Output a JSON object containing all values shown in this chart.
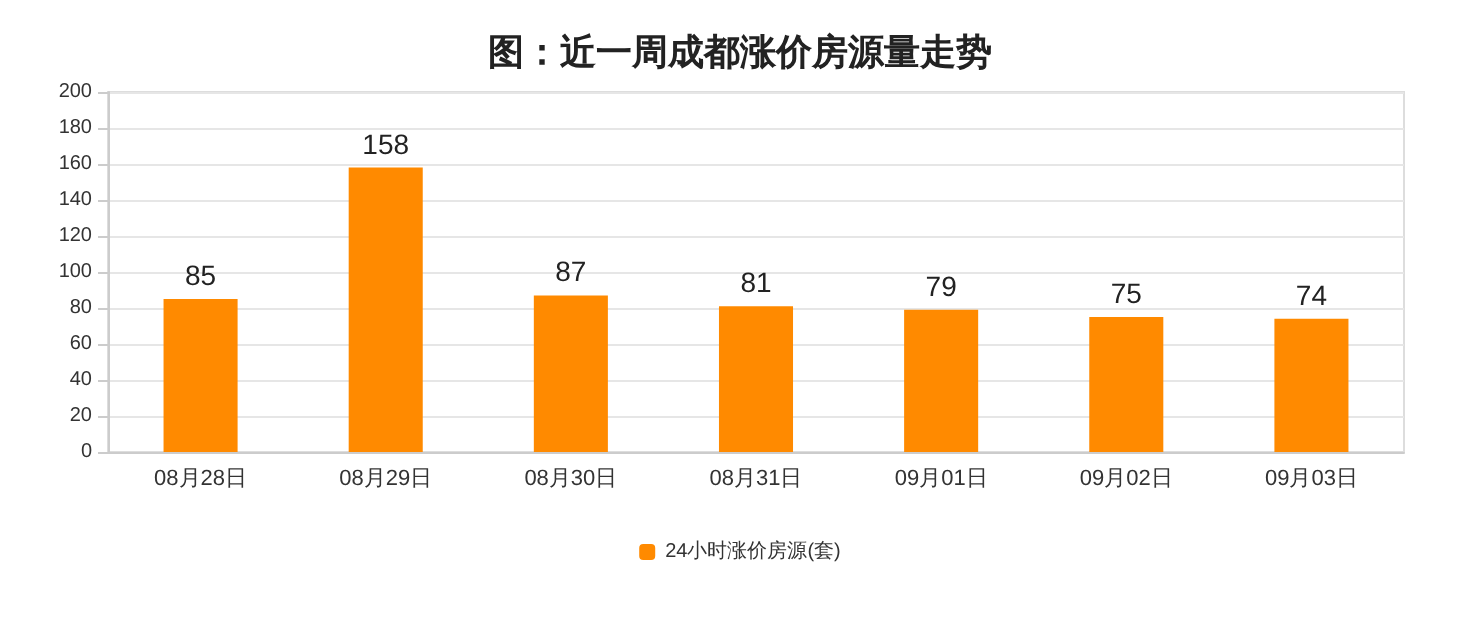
{
  "chart_data": {
    "type": "bar",
    "title": "图：近一周成都涨价房源量走势",
    "categories": [
      "08月28日",
      "08月29日",
      "08月30日",
      "08月31日",
      "09月01日",
      "09月02日",
      "09月03日"
    ],
    "series": [
      {
        "name": "24小时涨价房源(套)",
        "color": "#ff8a00",
        "values": [
          85,
          158,
          87,
          81,
          79,
          75,
          74
        ]
      }
    ],
    "ylim": [
      0,
      200
    ],
    "yticks": [
      0,
      20,
      40,
      60,
      80,
      100,
      120,
      140,
      160,
      180,
      200
    ],
    "grid": "y",
    "legend": "bottom",
    "data_labels": true
  }
}
